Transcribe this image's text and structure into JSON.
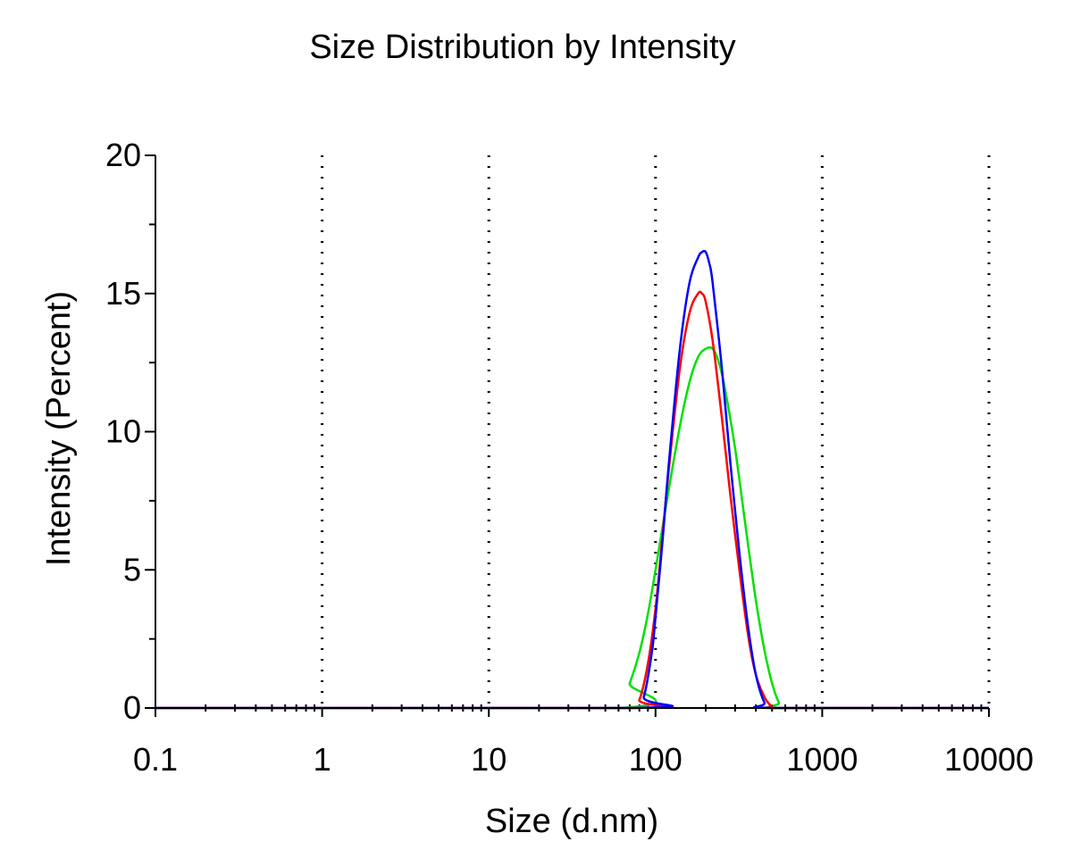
{
  "chart_data": {
    "type": "line",
    "title": "Size Distribution by Intensity",
    "xlabel": "Size (d.nm)",
    "ylabel": "Intensity (Percent)",
    "xscale": "log",
    "xlim": [
      0.1,
      10000
    ],
    "ylim": [
      0,
      20
    ],
    "x_ticks": [
      "0.1",
      "1",
      "10",
      "100",
      "1000",
      "10000"
    ],
    "y_ticks": [
      "0",
      "5",
      "10",
      "15",
      "20"
    ],
    "grid": "vertical dotted at decades",
    "legend": "none",
    "series": [
      {
        "color": "#ff0000",
        "x": [
          0.1,
          70,
          80,
          90,
          100,
          110,
          120,
          140,
          160,
          180,
          190,
          200,
          220,
          250,
          280,
          320,
          360,
          400,
          450,
          500,
          560,
          10000
        ],
        "y": [
          0,
          0,
          0.3,
          1.6,
          3.6,
          6.2,
          8.6,
          12.3,
          14.3,
          15.0,
          15.0,
          14.7,
          13.3,
          10.5,
          7.8,
          4.9,
          2.6,
          1.2,
          0.4,
          0.05,
          0,
          0
        ]
      },
      {
        "color": "#0000ff",
        "x": [
          0.1,
          75,
          85,
          95,
          100,
          110,
          120,
          140,
          160,
          180,
          190,
          200,
          210,
          220,
          250,
          280,
          320,
          360,
          400,
          450,
          500,
          10000
        ],
        "y": [
          0,
          0,
          0.4,
          2.0,
          3.3,
          6.0,
          8.8,
          13.0,
          15.4,
          16.3,
          16.5,
          16.5,
          16.1,
          15.4,
          12.3,
          9.0,
          5.5,
          2.9,
          1.2,
          0.2,
          0,
          0
        ]
      },
      {
        "color": "#00e000",
        "x": [
          0.1,
          60,
          70,
          80,
          90,
          100,
          120,
          140,
          160,
          180,
          200,
          220,
          240,
          260,
          300,
          350,
          400,
          450,
          500,
          550,
          600,
          10000
        ],
        "y": [
          0,
          0,
          0.9,
          2.0,
          3.4,
          5.0,
          7.9,
          10.2,
          11.8,
          12.7,
          13.0,
          13.0,
          12.5,
          11.6,
          9.4,
          6.4,
          3.9,
          2.1,
          0.9,
          0.2,
          0,
          0
        ]
      }
    ]
  }
}
